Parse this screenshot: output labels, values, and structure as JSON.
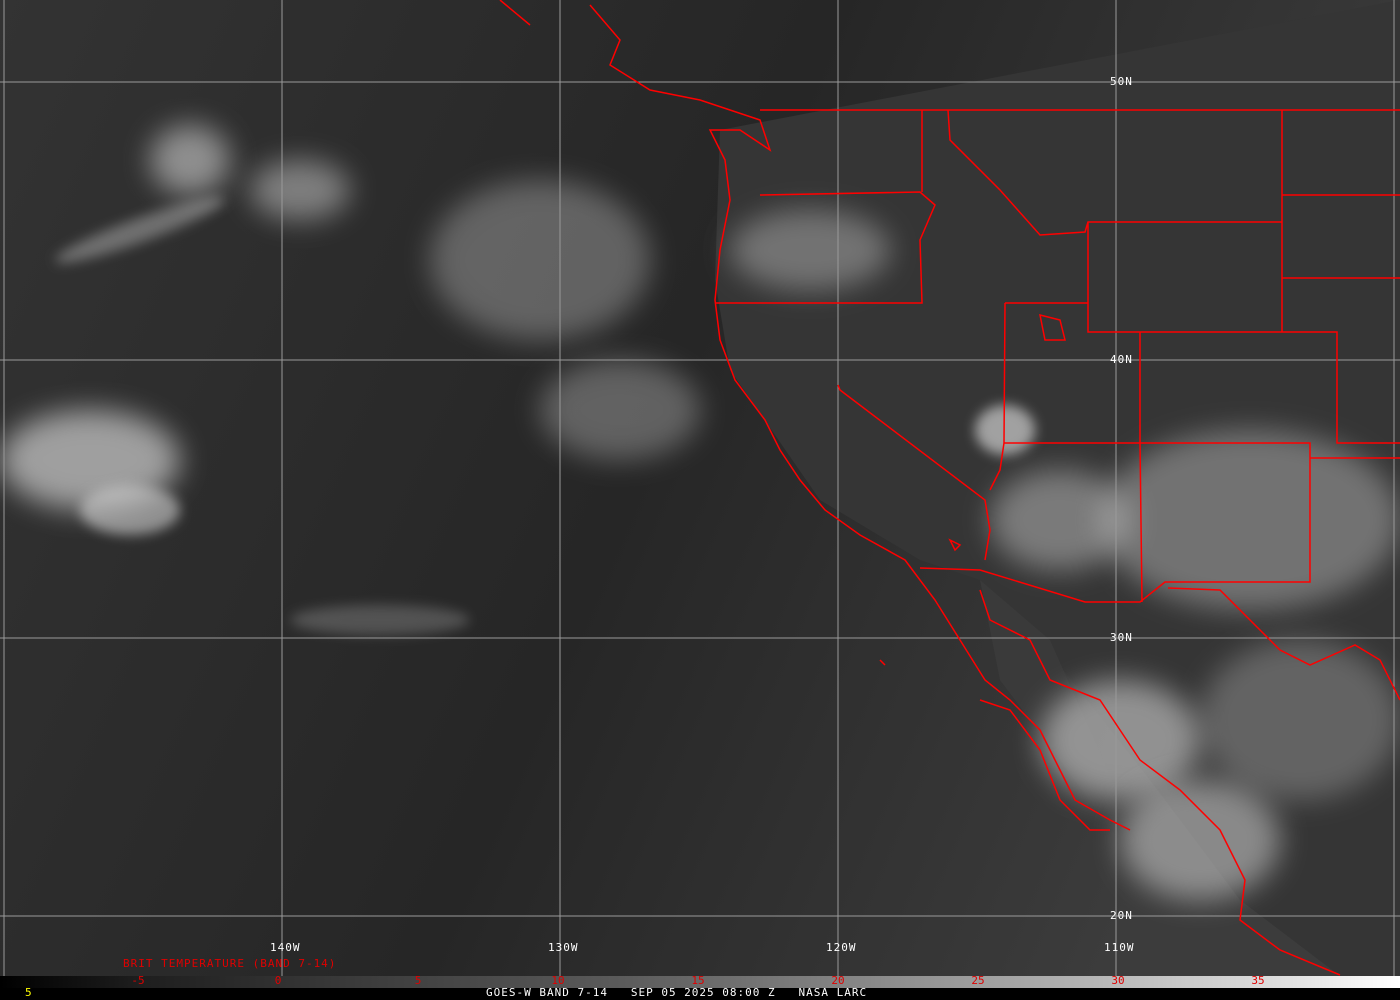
{
  "map": {
    "type": "satellite-infrared",
    "colors": {
      "border": "#ff0000",
      "grid": "#9a9a9a",
      "legend_text": "#e00000",
      "footer_text": "#ffffff",
      "footer_left": "#ffff00"
    },
    "lat_labels": [
      "50N",
      "40N",
      "30N",
      "20N"
    ],
    "lon_labels": [
      "140W",
      "130W",
      "120W",
      "110W"
    ]
  },
  "legend": {
    "title": "BRIT TEMPERATURE (BAND 7-14)",
    "ticks": [
      "-5",
      "0",
      "5",
      "10",
      "15",
      "20",
      "25",
      "30",
      "35"
    ]
  },
  "footer": {
    "left": "5",
    "text": "GOES-W BAND 7-14   SEP 05 2025 08:00 Z   NASA LARC"
  }
}
